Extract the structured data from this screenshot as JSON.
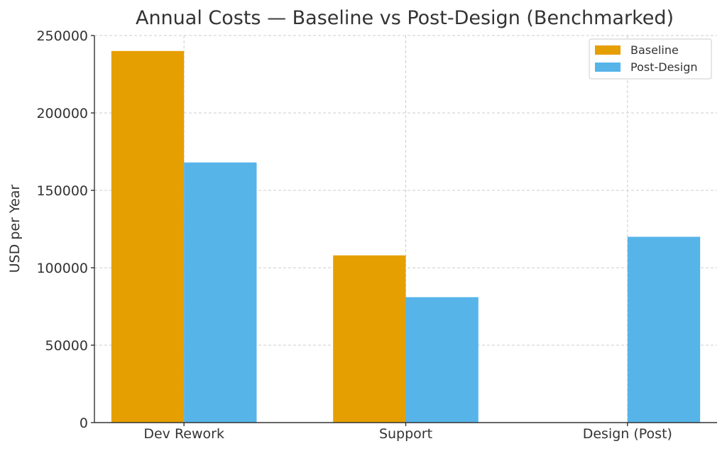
{
  "chart_data": {
    "type": "bar",
    "title": "Annual Costs — Baseline vs Post-Design (Benchmarked)",
    "xlabel": "",
    "ylabel": "USD per Year",
    "categories": [
      "Dev Rework",
      "Support",
      "Design (Post)"
    ],
    "series": [
      {
        "name": "Baseline",
        "color": "#E69F00",
        "values": [
          240000,
          108000,
          0
        ]
      },
      {
        "name": "Post-Design",
        "color": "#56B4E9",
        "values": [
          168000,
          81000,
          120000
        ]
      }
    ],
    "ylim": [
      0,
      250000
    ],
    "yticks": [
      "0",
      "50000",
      "100000",
      "150000",
      "200000",
      "250000"
    ],
    "grid": true,
    "legend_position": "top-right"
  }
}
